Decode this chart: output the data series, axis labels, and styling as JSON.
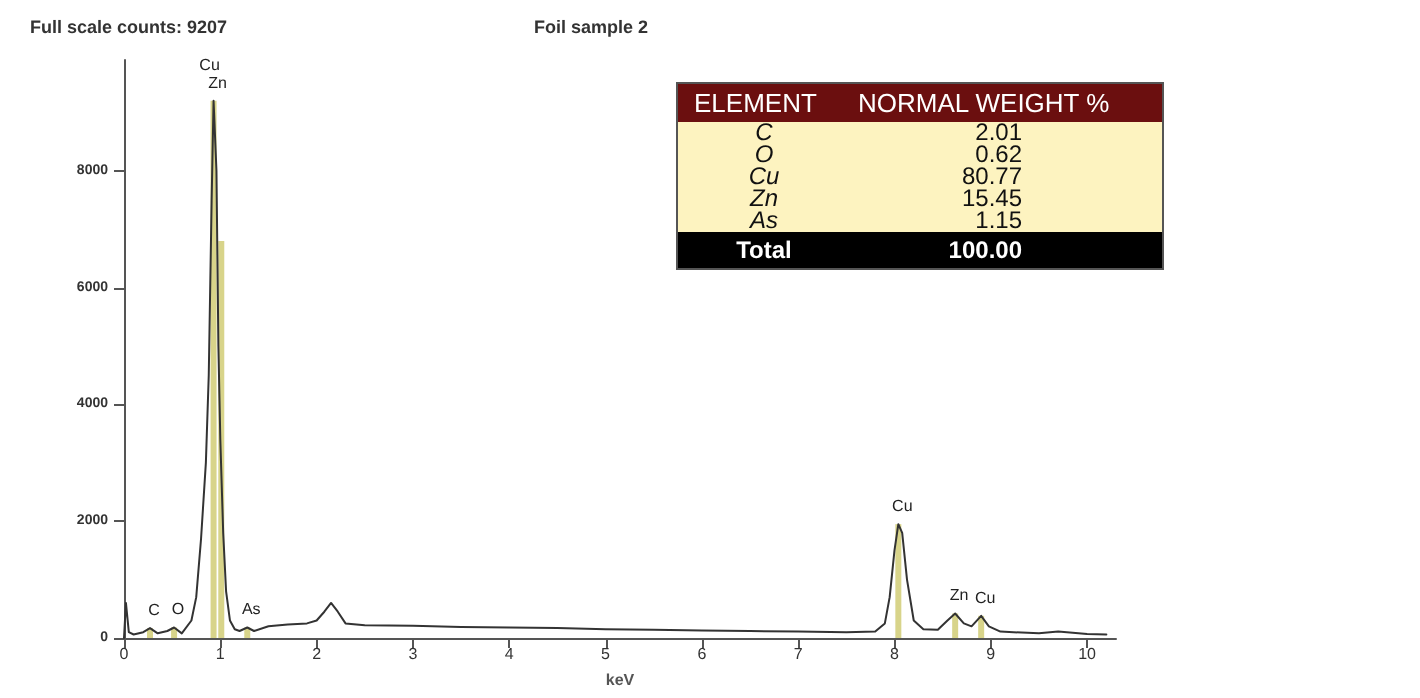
{
  "chart_data": [
    {
      "type": "line",
      "title": "Foil sample 2",
      "subtitle": "Full scale counts: 9207",
      "xlabel": "keV",
      "xlim": [
        0,
        10.3
      ],
      "ylim": [
        0,
        9900
      ],
      "xticks": [
        0,
        1,
        2,
        3,
        4,
        5,
        6,
        7,
        8,
        9,
        10
      ],
      "yticks": [
        0,
        2000,
        4000,
        6000,
        8000
      ],
      "grid": false,
      "marker": "none",
      "line_style": "solid",
      "series": [
        {
          "color": "#333333",
          "x": [
            0,
            0.02,
            0.05,
            0.1,
            0.2,
            0.27,
            0.35,
            0.45,
            0.52,
            0.6,
            0.7,
            0.75,
            0.8,
            0.85,
            0.88,
            0.91,
            0.93,
            0.96,
            0.98,
            1.0,
            1.03,
            1.06,
            1.1,
            1.15,
            1.2,
            1.28,
            1.35,
            1.5,
            1.7,
            1.9,
            2.0,
            2.08,
            2.15,
            2.22,
            2.3,
            2.5,
            3,
            3.5,
            4,
            4.5,
            5,
            5.5,
            6,
            6.5,
            7,
            7.5,
            7.8,
            7.9,
            7.95,
            8.0,
            8.04,
            8.08,
            8.13,
            8.2,
            8.3,
            8.45,
            8.55,
            8.63,
            8.72,
            8.8,
            8.9,
            8.98,
            9.1,
            9.5,
            9.7,
            10,
            10.2
          ],
          "values": [
            0,
            600,
            100,
            60,
            100,
            170,
            80,
            120,
            180,
            80,
            300,
            700,
            1700,
            3000,
            4500,
            7500,
            9200,
            8000,
            5000,
            3400,
            1800,
            800,
            300,
            150,
            120,
            180,
            120,
            200,
            230,
            250,
            300,
            450,
            600,
            450,
            250,
            220,
            210,
            190,
            180,
            170,
            150,
            140,
            130,
            120,
            110,
            100,
            110,
            250,
            700,
            1500,
            1950,
            1800,
            1000,
            300,
            150,
            140,
            300,
            420,
            250,
            200,
            380,
            200,
            110,
            80,
            110,
            70,
            60
          ]
        },
        {
          "type": "bar",
          "color": "#d8d48a",
          "x": [
            0.27,
            0.52,
            0.93,
            1.01,
            1.28,
            8.04,
            8.63,
            8.9
          ],
          "values": [
            170,
            180,
            9200,
            6800,
            180,
            1950,
            420,
            380
          ]
        }
      ],
      "annotations": [
        {
          "text": "C",
          "x": 0.27,
          "y": 170
        },
        {
          "text": "O",
          "x": 0.52,
          "y": 180
        },
        {
          "text": "Cu",
          "x": 0.93,
          "y": 9200
        },
        {
          "text": "Zn",
          "x": 0.93,
          "y": 9200
        },
        {
          "text": "As",
          "x": 1.28,
          "y": 180
        },
        {
          "text": "Cu",
          "x": 8.04,
          "y": 1950
        },
        {
          "text": "Zn",
          "x": 8.63,
          "y": 420
        },
        {
          "text": "Cu",
          "x": 8.9,
          "y": 380
        }
      ]
    },
    {
      "type": "other",
      "xlabel": "ELEMENT",
      "ylabel": "NORMAL WEIGHT %",
      "categories": [
        "C",
        "O",
        "Cu",
        "Zn",
        "As"
      ],
      "values": [
        2.01,
        0.62,
        80.77,
        15.45,
        1.15
      ],
      "data_labels": true,
      "annotations": [
        "Total",
        "100.00"
      ]
    }
  ]
}
